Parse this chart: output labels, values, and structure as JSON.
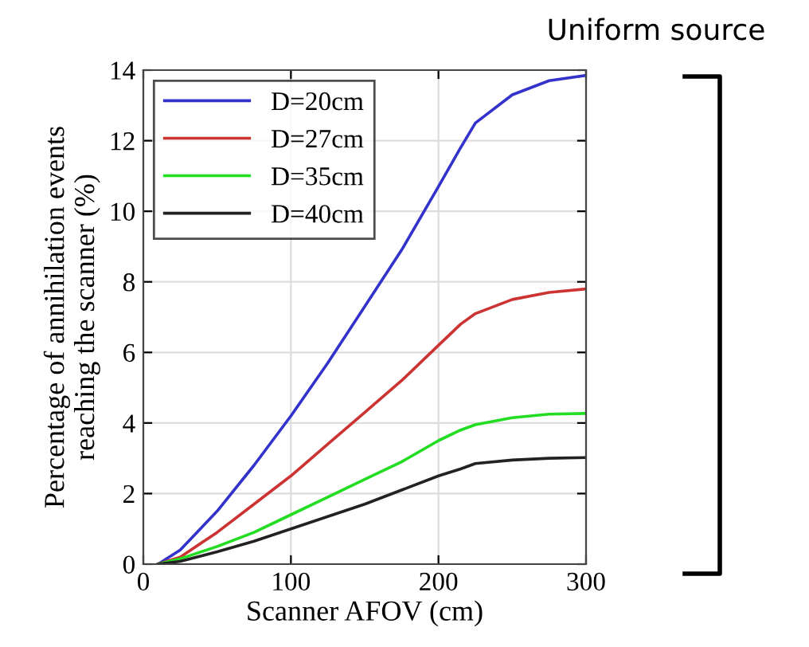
{
  "chart_data": {
    "type": "line",
    "xlabel": "Scanner AFOV (cm)",
    "ylabel": "Percentage of annihilation events\nreaching the scanner (%)",
    "annotations": [
      "Uniform source"
    ],
    "x": [
      10,
      25,
      50,
      75,
      100,
      125,
      150,
      175,
      200,
      215,
      225,
      250,
      275,
      300
    ],
    "series": [
      {
        "name": "D=20cm",
        "color": "#3333cc",
        "values": [
          0,
          0.4,
          1.5,
          2.8,
          4.2,
          5.7,
          7.3,
          8.9,
          10.7,
          11.8,
          12.5,
          13.3,
          13.7,
          13.85
        ]
      },
      {
        "name": "D=27cm",
        "color": "#cc3333",
        "values": [
          0,
          0.2,
          0.9,
          1.7,
          2.5,
          3.4,
          4.3,
          5.2,
          6.2,
          6.8,
          7.1,
          7.5,
          7.7,
          7.8
        ]
      },
      {
        "name": "D=35cm",
        "color": "#22dd22",
        "values": [
          0,
          0.15,
          0.5,
          0.9,
          1.4,
          1.9,
          2.4,
          2.9,
          3.5,
          3.8,
          3.95,
          4.15,
          4.25,
          4.27
        ]
      },
      {
        "name": "D=40cm",
        "color": "#222222",
        "values": [
          0,
          0.08,
          0.35,
          0.65,
          1.0,
          1.35,
          1.7,
          2.1,
          2.5,
          2.7,
          2.85,
          2.95,
          3.0,
          3.02
        ]
      }
    ],
    "xlim": [
      0,
      300
    ],
    "xticks": [
      0,
      100,
      200,
      300
    ],
    "ylim": [
      0,
      14
    ],
    "yticks": [
      0,
      2,
      4,
      6,
      8,
      10,
      12,
      14
    ],
    "grid": true,
    "legend": "top left",
    "line_style": "solid",
    "marker": "none"
  }
}
